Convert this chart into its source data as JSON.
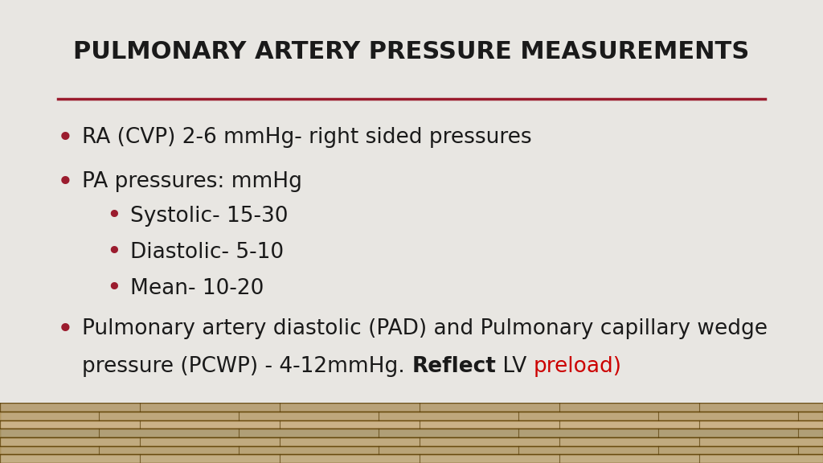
{
  "title": "PULMONARY ARTERY PRESSURE MEASUREMENTS",
  "title_fontsize": 22,
  "title_color": "#1a1a1a",
  "bg_color_slide": "#e8e6e2",
  "divider_color": "#9b1c2e",
  "bullet_color": "#9b1c2e",
  "text_color": "#1a1a1a",
  "red_color": "#cc0000",
  "bullet1": "RA (CVP) 2-6 mmHg- right sided pressures",
  "bullet2": "PA pressures: mmHg",
  "sub_bullet1": "Systolic- 15-30",
  "sub_bullet2": "Diastolic- 5-10",
  "sub_bullet3": "Mean- 10-20",
  "bullet3_part1": "Pulmonary artery diastolic (PAD) and Pulmonary capillary wedge",
  "bullet3_part2_normal": "pressure (PCWP) - 4-12mmHg. ",
  "bullet3_part2_bold": "Reflect",
  "bullet3_part2_normal2": " LV ",
  "bullet3_part2_red": "preload)",
  "main_fontsize": 19,
  "sub_fontsize": 19,
  "floor_colors": [
    "#a07828",
    "#8b6410",
    "#9c7220",
    "#7a5a0e",
    "#b08030",
    "#956a18",
    "#8a6012"
  ]
}
